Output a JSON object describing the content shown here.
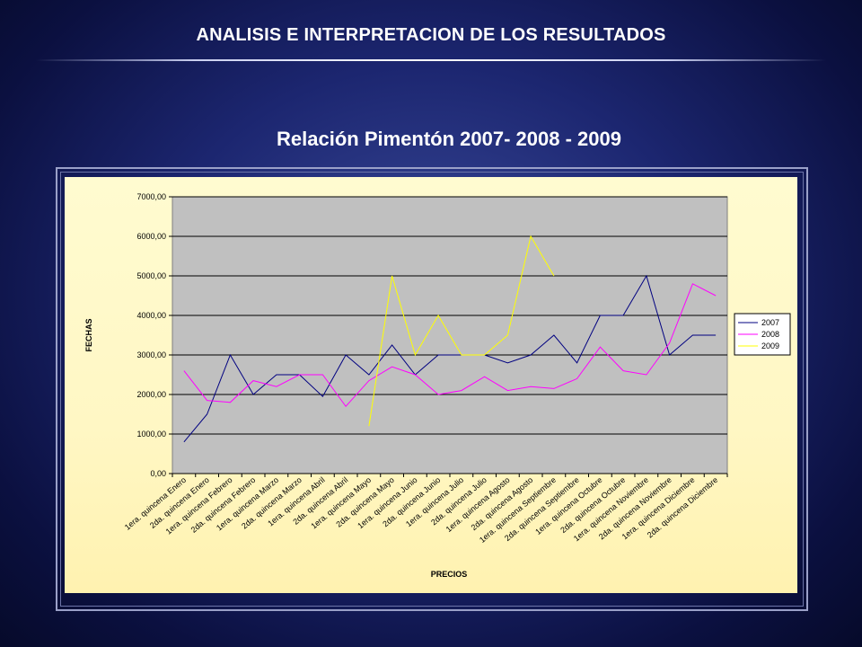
{
  "slide": {
    "title": "ANALISIS E INTERPRETACION  DE LOS RESULTADOS"
  },
  "chart_data": {
    "type": "line",
    "title": "Relación Pimentón 2007- 2008 - 2009",
    "xlabel": "PRECIOS",
    "ylabel": "FECHAS",
    "ylim": [
      0,
      7000
    ],
    "yticks": [
      "0,00",
      "1000,00",
      "2000,00",
      "3000,00",
      "4000,00",
      "5000,00",
      "6000,00",
      "7000,00"
    ],
    "grid": true,
    "legend_position": "right",
    "categories": [
      "1era. quincena Enero",
      "2da. quincena Enero",
      "1era. quincena Febrero",
      "2da. quincena Febrero",
      "1era. quincena Marzo",
      "2da. quincena Marzo",
      "1era. quincena Abril",
      "2da. quincena Abril",
      "1era. quincena Mayo",
      "2da. quincena Mayo",
      "1era. quincena Junio",
      "2da. quincena Junio",
      "1era. quincena Julio",
      "2da. quincena Julio",
      "1era. quincena Agosto",
      "2da. quincena Agosto",
      "1era. quincena Septiembre",
      "2da. quincena Septiembre",
      "1era. quincena Octubre",
      "2da. quincena Octubre",
      "1era. quincena Noviembre",
      "2da. quincena Noviembre",
      "1era. quincena Diciembre",
      "2da. quincena Diciembre"
    ],
    "series": [
      {
        "name": "2007",
        "color": "#000080",
        "values": [
          800,
          1500,
          3000,
          2000,
          2500,
          2500,
          1950,
          3000,
          2500,
          3250,
          2500,
          3000,
          3000,
          3000,
          2800,
          3000,
          3500,
          2800,
          4000,
          4000,
          5000,
          3000,
          3500,
          3500
        ]
      },
      {
        "name": "2008",
        "color": "#ff00ff",
        "values": [
          2600,
          1850,
          1800,
          2350,
          2200,
          2500,
          2500,
          1700,
          2350,
          2700,
          2500,
          2000,
          2100,
          2450,
          2100,
          2200,
          2150,
          2400,
          3200,
          2600,
          2500,
          3300,
          4800,
          4500
        ]
      },
      {
        "name": "2009",
        "color": "#ffff00",
        "values": [
          null,
          null,
          null,
          null,
          null,
          null,
          null,
          null,
          1200,
          5000,
          3000,
          4000,
          3000,
          3000,
          3500,
          6000,
          5000,
          null,
          null,
          null,
          null,
          null,
          null,
          null
        ]
      }
    ]
  }
}
